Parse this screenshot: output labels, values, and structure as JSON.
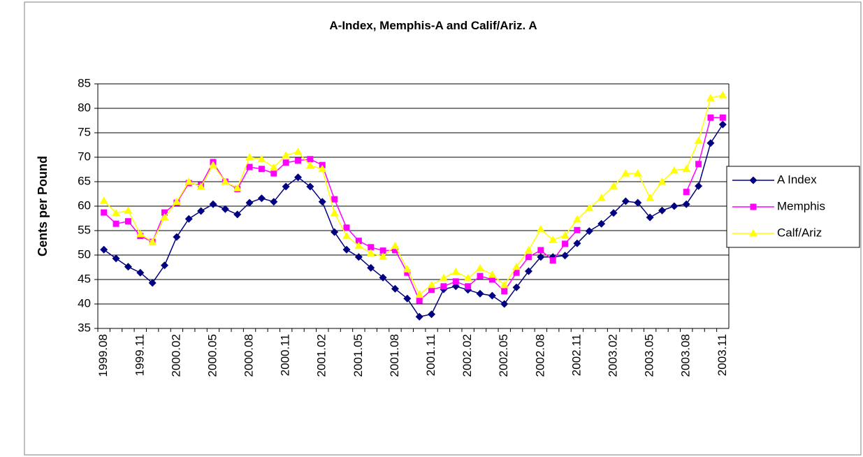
{
  "chart_data": {
    "type": "line",
    "title": "A-Index, Memphis-A and Calif/Ariz. A",
    "y_label": "Cents per Pound",
    "categories": [
      "1999.08",
      null,
      null,
      "1999.11",
      null,
      null,
      "2000.02",
      null,
      null,
      "2000.05",
      null,
      null,
      "2000.08",
      null,
      null,
      "2000.11",
      null,
      null,
      "2001.02",
      null,
      null,
      "2001.05",
      null,
      null,
      "2001.08",
      null,
      null,
      "2001.11",
      null,
      null,
      "2002.02",
      null,
      null,
      "2002.05",
      null,
      null,
      "2002.08",
      null,
      null,
      "2002.11",
      null,
      null,
      "2003.02",
      null,
      null,
      "2003.05",
      null,
      null,
      "2003.08",
      null,
      null,
      "2003.11"
    ],
    "series": [
      {
        "name": "A Index",
        "color": "#000080",
        "marker": "diamond",
        "values": [
          51.1,
          49.3,
          47.6,
          46.4,
          44.3,
          47.9,
          53.7,
          57.4,
          59,
          60.4,
          59.4,
          58.3,
          60.7,
          61.6,
          60.9,
          64,
          65.9,
          64,
          60.9,
          54.7,
          51.1,
          49.6,
          47.4,
          45.4,
          43.1,
          41.1,
          37.4,
          37.9,
          43,
          43.6,
          42.9,
          42.1,
          41.7,
          40,
          43.4,
          46.7,
          49.6,
          49.6,
          49.9,
          52.4,
          54.9,
          56.4,
          58.6,
          61,
          60.7,
          57.7,
          59.1,
          60,
          60.4,
          64.1,
          72.9,
          76.7
        ]
      },
      {
        "name": "Memphis",
        "color": "#ff00ff",
        "marker": "square",
        "values": [
          58.7,
          56.4,
          56.9,
          53.9,
          52.7,
          58.7,
          60.7,
          64.7,
          64.3,
          69,
          65,
          63.5,
          68,
          67.6,
          66.7,
          68.9,
          69.3,
          69.6,
          68.4,
          61.4,
          55.6,
          52.9,
          51.6,
          50.9,
          51,
          46.4,
          40.7,
          42.9,
          43.6,
          44.6,
          43.6,
          45.7,
          45,
          42.6,
          46.4,
          49.6,
          51,
          48.9,
          52.3,
          55.1,
          null,
          null,
          null,
          null,
          null,
          null,
          null,
          null,
          62.9,
          68.6,
          78.1,
          78.1
        ]
      },
      {
        "name": "Calf/Ariz",
        "color": "#ffff00",
        "marker": "triangle",
        "values": [
          61.1,
          58.6,
          59.1,
          54.3,
          52.7,
          57.7,
          60.9,
          65,
          64,
          68.4,
          65,
          63.7,
          70,
          69.6,
          67.9,
          70.4,
          71.1,
          68.3,
          67.6,
          58.6,
          53.9,
          51.9,
          50.4,
          49.7,
          51.9,
          47.1,
          41.9,
          43.9,
          45.3,
          46.6,
          45.3,
          47.3,
          46,
          43.9,
          47.6,
          51,
          55.3,
          53.1,
          54,
          57.3,
          59.6,
          61.7,
          64.1,
          66.7,
          66.7,
          61.7,
          65,
          67.3,
          67.6,
          73.4,
          82.1,
          82.7
        ]
      }
    ],
    "ylim": [
      35,
      85
    ],
    "yticks": [
      35,
      40,
      45,
      50,
      55,
      60,
      65,
      70,
      75,
      80,
      85
    ],
    "grid": true,
    "legend": "right"
  }
}
